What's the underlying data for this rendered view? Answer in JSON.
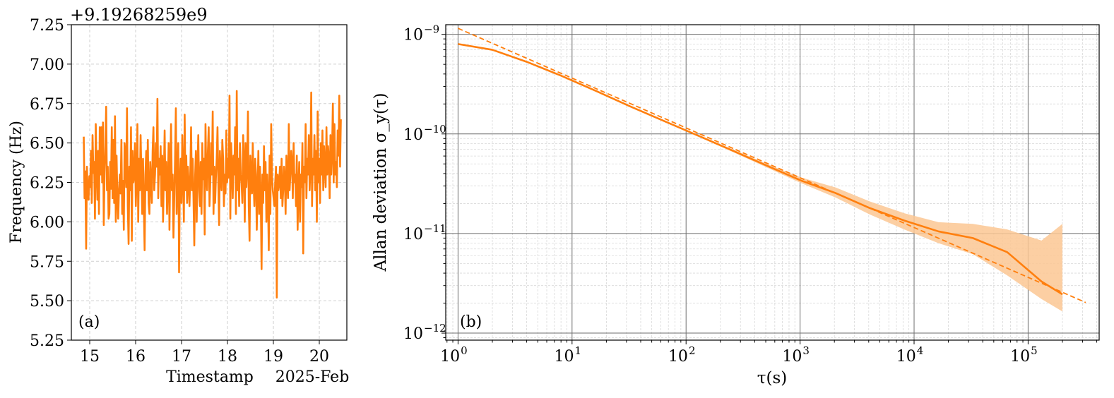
{
  "colors": {
    "series": "#ff7f0e",
    "band": "#fbc793",
    "grid_major": "#6e6e6e",
    "grid_minor": "#d9d9d9"
  },
  "chart_data": [
    {
      "id": "a",
      "type": "line",
      "panel_label": "(a)",
      "ylabel": "Frequency (Hz)",
      "xlabel": "Timestamp",
      "x_offset_label": "2025-Feb",
      "y_offset_label": "+9.19268259e9",
      "xlim": [
        14.6,
        20.6
      ],
      "ylim": [
        5.25,
        7.25
      ],
      "xticks": [
        15,
        16,
        17,
        18,
        19,
        20
      ],
      "xtick_labels": [
        "15",
        "16",
        "17",
        "18",
        "19",
        "20"
      ],
      "yticks": [
        5.25,
        5.5,
        5.75,
        6.0,
        6.25,
        6.5,
        6.75,
        7.0,
        7.25
      ],
      "ytick_labels": [
        "5.25",
        "5.50",
        "5.75",
        "6.00",
        "6.25",
        "6.50",
        "6.75",
        "7.00",
        "7.25"
      ],
      "grid": true,
      "series": [
        {
          "x_start": 14.87,
          "x_end": 20.47,
          "values": [
            6.54,
            6.15,
            6.32,
            5.83,
            6.35,
            6.18,
            6.14,
            6.29,
            6.22,
            6.45,
            6.12,
            6.55,
            6.31,
            6.38,
            6.02,
            6.62,
            6.36,
            6.14,
            6.45,
            6.05,
            6.6,
            6.3,
            6.6,
            6.25,
            6.63,
            5.98,
            6.31,
            6.48,
            6.73,
            6.2,
            6.35,
            6.02,
            6.05,
            6.38,
            6.21,
            6.6,
            6.15,
            6.52,
            6.12,
            6.67,
            6.0,
            6.42,
            6.15,
            6.02,
            6.2,
            6.3,
            6.18,
            6.52,
            6.05,
            6.26,
            5.95,
            6.5,
            6.4,
            6.22,
            6.72,
            6.1,
            5.86,
            6.35,
            6.2,
            6.6,
            5.88,
            6.45,
            6.25,
            6.3,
            6.5,
            6.1,
            6.28,
            6.62,
            6.0,
            6.4,
            6.2,
            6.55,
            6.3,
            6.05,
            6.4,
            6.1,
            5.82,
            6.3,
            6.45,
            6.2,
            6.52,
            6.12,
            6.05,
            6.38,
            6.25,
            6.12,
            6.45,
            6.6,
            6.2,
            6.3,
            6.5,
            6.35,
            6.78,
            6.15,
            6.4,
            6.3,
            6.48,
            6.1,
            6.42,
            6.0,
            6.3,
            6.58,
            6.2,
            6.38,
            6.05,
            6.25,
            6.5,
            5.95,
            6.35,
            6.62,
            6.2,
            6.3,
            5.9,
            6.15,
            6.4,
            6.72,
            6.05,
            6.3,
            6.5,
            5.68,
            6.25,
            6.4,
            6.12,
            6.55,
            6.3,
            6.0,
            6.68,
            6.2,
            6.42,
            6.12,
            6.35,
            6.25,
            6.1,
            6.3,
            6.6,
            6.2,
            6.4,
            6.15,
            5.85,
            6.28,
            6.45,
            6.0,
            6.35,
            6.55,
            6.2,
            6.1,
            6.38,
            6.05,
            6.5,
            6.27,
            6.4,
            5.92,
            6.62,
            6.3,
            6.2,
            6.45,
            6.6,
            6.1,
            6.25,
            6.5,
            6.3,
            6.7,
            6.05,
            6.35,
            6.12,
            6.28,
            6.4,
            6.6,
            6.25,
            5.98,
            6.45,
            6.3,
            6.2,
            6.52,
            6.4,
            6.1,
            6.3,
            6.18,
            6.58,
            6.25,
            6.4,
            6.28,
            6.8,
            6.02,
            6.5,
            6.35,
            6.15,
            6.42,
            6.3,
            6.6,
            6.05,
            6.83,
            6.2,
            6.4,
            6.1,
            6.5,
            6.3,
            6.25,
            6.12,
            6.55,
            6.38,
            6.0,
            6.5,
            6.22,
            6.35,
            6.7,
            6.1,
            5.88,
            6.42,
            6.3,
            6.18,
            6.5,
            6.25,
            6.1,
            6.4,
            6.3,
            5.95,
            6.2,
            6.45,
            6.05,
            6.35,
            6.15,
            5.7,
            6.3,
            6.12,
            6.48,
            6.2,
            6.38,
            6.0,
            6.3,
            6.15,
            5.82,
            6.42,
            6.05,
            6.62,
            6.3,
            6.2,
            6.15,
            6.1,
            6.25,
            6.35,
            5.52,
            6.3,
            6.2,
            6.25,
            6.35,
            6.15,
            6.4,
            6.1,
            6.2,
            6.35,
            6.28,
            6.05,
            6.42,
            6.25,
            6.15,
            6.62,
            6.2,
            6.3,
            6.45,
            6.38,
            6.15,
            6.5,
            6.25,
            6.3,
            6.1,
            6.42,
            5.95,
            6.2,
            6.38,
            6.0,
            6.3,
            6.22,
            6.5,
            5.8,
            6.35,
            6.25,
            6.62,
            6.15,
            6.4,
            6.3,
            6.55,
            6.2,
            6.35,
            6.82,
            6.1,
            6.4,
            6.3,
            6.55,
            6.2,
            6.45,
            6.0,
            6.7,
            6.25,
            6.4,
            6.12,
            6.5,
            6.3,
            6.58,
            6.2,
            6.48,
            6.35,
            6.22,
            6.6,
            6.3,
            6.48,
            6.4,
            6.15,
            6.55,
            6.3,
            6.45,
            6.75,
            6.25,
            6.62,
            6.3,
            6.38,
            6.22,
            6.58,
            6.42,
            6.8,
            6.35,
            6.65
          ]
        }
      ]
    },
    {
      "id": "b",
      "type": "line",
      "panel_label": "(b)",
      "ylabel": "Allan deviation σ_y(τ)",
      "xlabel": "τ(s)",
      "xscale": "log",
      "yscale": "log",
      "xlim": [
        0.78,
        420000
      ],
      "ylim": [
        8.5e-13,
        1.25e-09
      ],
      "xticks": [
        1,
        10,
        100,
        1000,
        10000,
        100000
      ],
      "xtick_labels": [
        {
          "base": "10",
          "exp": "0"
        },
        {
          "base": "10",
          "exp": "1"
        },
        {
          "base": "10",
          "exp": "2"
        },
        {
          "base": "10",
          "exp": "3"
        },
        {
          "base": "10",
          "exp": "4"
        },
        {
          "base": "10",
          "exp": "5"
        }
      ],
      "yticks": [
        1e-12,
        1e-11,
        1e-10,
        1e-09
      ],
      "ytick_labels": [
        {
          "base": "10",
          "exp": "−12"
        },
        {
          "base": "10",
          "exp": "−11"
        },
        {
          "base": "10",
          "exp": "−10"
        },
        {
          "base": "10",
          "exp": "−9"
        }
      ],
      "grid": true,
      "series": [
        {
          "style": "solid",
          "x": [
            1,
            2,
            4,
            8,
            16,
            32,
            64,
            128,
            256,
            512,
            1024,
            2048,
            4096,
            8192,
            16384,
            32768,
            65536,
            131072,
            200000
          ],
          "values": [
            8e-10,
            7e-10,
            5.3e-10,
            3.85e-10,
            2.72e-10,
            1.9e-10,
            1.35e-10,
            9.6e-11,
            6.8e-11,
            4.8e-11,
            3.4e-11,
            2.55e-11,
            1.8e-11,
            1.35e-11,
            1.05e-11,
            9e-12,
            6.5e-12,
            3.3e-12,
            2.45e-12
          ],
          "band_lower": [
            8e-10,
            7e-10,
            5.3e-10,
            3.85e-10,
            2.72e-10,
            1.9e-10,
            1.35e-10,
            9.4e-11,
            6.6e-11,
            4.6e-11,
            3.2e-11,
            2.3e-11,
            1.55e-11,
            1.1e-11,
            8e-12,
            6.2e-12,
            3.8e-12,
            2.2e-12,
            1.65e-12
          ],
          "band_upper": [
            8e-10,
            7e-10,
            5.3e-10,
            3.85e-10,
            2.72e-10,
            1.9e-10,
            1.37e-10,
            9.8e-11,
            7e-11,
            5e-11,
            3.65e-11,
            2.9e-11,
            2.1e-11,
            1.6e-11,
            1.3e-11,
            1.25e-11,
            1.1e-11,
            8.5e-12,
            1.25e-11
          ]
        },
        {
          "style": "dashed",
          "x": [
            1,
            320000
          ],
          "values": [
            1.15e-09,
            2.03e-12
          ]
        }
      ]
    }
  ]
}
